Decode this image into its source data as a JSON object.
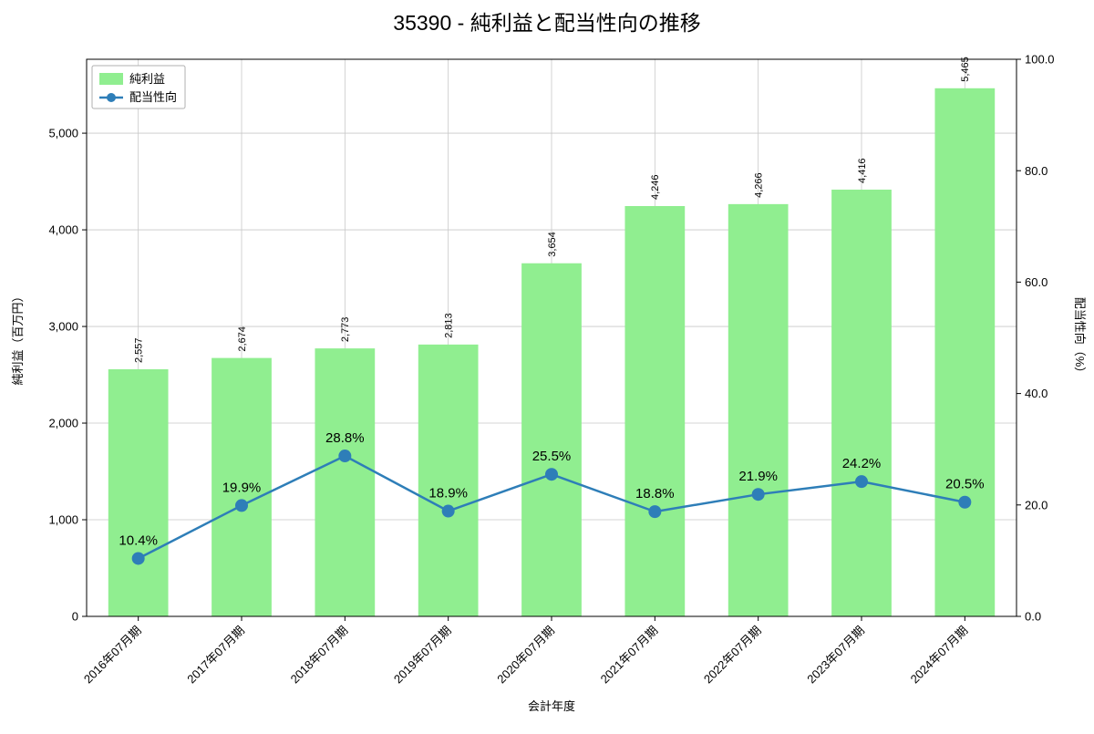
{
  "chart_data": {
    "type": "bar+line",
    "title": "35390 - 純利益と配当性向の推移",
    "xlabel": "会計年度",
    "ylabel_left": "純利益（百万円）",
    "ylabel_right": "配当性向（%）",
    "categories": [
      "2016年07月期",
      "2017年07月期",
      "2018年07月期",
      "2019年07月期",
      "2020年07月期",
      "2021年07月期",
      "2022年07月期",
      "2023年07月期",
      "2024年07月期"
    ],
    "series": [
      {
        "name": "純利益",
        "type": "bar",
        "axis": "left",
        "color": "#90ee90",
        "values": [
          2557,
          2674,
          2773,
          2813,
          3654,
          4246,
          4266,
          4416,
          5465
        ],
        "value_labels": [
          "2,557",
          "2,674",
          "2,773",
          "2,813",
          "3,654",
          "4,246",
          "4,266",
          "4,416",
          "5,465"
        ]
      },
      {
        "name": "配当性向",
        "type": "line",
        "axis": "right",
        "color": "#2e7eb8",
        "label_color": "#1f86b4",
        "values": [
          10.4,
          19.9,
          28.8,
          18.9,
          25.5,
          18.8,
          21.9,
          24.2,
          20.5
        ],
        "value_labels": [
          "10.4%",
          "19.9%",
          "28.8%",
          "18.9%",
          "25.5%",
          "18.8%",
          "21.9%",
          "24.2%",
          "20.5%"
        ]
      }
    ],
    "ylim_left": [
      0,
      5765
    ],
    "yticks_left": [
      0,
      1000,
      2000,
      3000,
      4000,
      5000
    ],
    "ytick_labels_left": [
      "0",
      "1,000",
      "2,000",
      "3,000",
      "4,000",
      "5,000"
    ],
    "ylim_right": [
      0,
      100
    ],
    "yticks_right": [
      0,
      20,
      40,
      60,
      80,
      100
    ],
    "ytick_labels_right": [
      "0.0",
      "20.0",
      "40.0",
      "60.0",
      "80.0",
      "100.0"
    ],
    "grid": true,
    "legend_position": "upper-left",
    "grid_color": "#c8c8c8",
    "axis_color": "#000000"
  }
}
